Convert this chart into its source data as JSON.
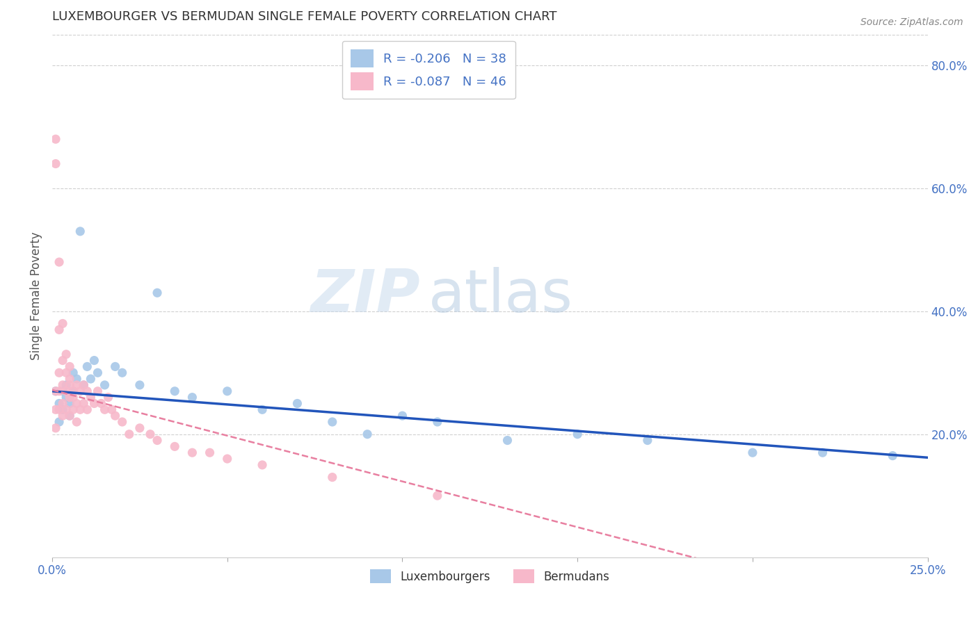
{
  "title": "LUXEMBOURGER VS BERMUDAN SINGLE FEMALE POVERTY CORRELATION CHART",
  "source": "Source: ZipAtlas.com",
  "ylabel": "Single Female Poverty",
  "legend_bottom": [
    "Luxembourgers",
    "Bermudans"
  ],
  "R_lux": -0.206,
  "N_lux": 38,
  "R_berm": -0.087,
  "N_berm": 46,
  "lux_color": "#a8c8e8",
  "berm_color": "#f7b8ca",
  "lux_line_color": "#2255bb",
  "berm_line_color": "#e87fa0",
  "xlim": [
    0.0,
    0.25
  ],
  "ylim": [
    0.0,
    0.85
  ],
  "y_ticks_right": [
    0.2,
    0.4,
    0.6,
    0.8
  ],
  "y_tick_labels_right": [
    "20.0%",
    "40.0%",
    "60.0%",
    "80.0%"
  ],
  "watermark_zip": "ZIP",
  "watermark_atlas": "atlas",
  "lux_x": [
    0.001,
    0.002,
    0.002,
    0.003,
    0.003,
    0.004,
    0.004,
    0.005,
    0.005,
    0.006,
    0.006,
    0.007,
    0.008,
    0.009,
    0.01,
    0.011,
    0.012,
    0.013,
    0.015,
    0.018,
    0.02,
    0.025,
    0.03,
    0.035,
    0.04,
    0.05,
    0.06,
    0.07,
    0.08,
    0.09,
    0.1,
    0.11,
    0.13,
    0.15,
    0.17,
    0.2,
    0.22,
    0.24
  ],
  "lux_y": [
    0.27,
    0.25,
    0.22,
    0.27,
    0.24,
    0.28,
    0.26,
    0.25,
    0.23,
    0.3,
    0.27,
    0.29,
    0.53,
    0.28,
    0.31,
    0.29,
    0.32,
    0.3,
    0.28,
    0.31,
    0.3,
    0.28,
    0.43,
    0.27,
    0.26,
    0.27,
    0.24,
    0.25,
    0.22,
    0.2,
    0.23,
    0.22,
    0.19,
    0.2,
    0.19,
    0.17,
    0.17,
    0.165
  ],
  "berm_x": [
    0.001,
    0.001,
    0.001,
    0.002,
    0.002,
    0.002,
    0.003,
    0.003,
    0.003,
    0.004,
    0.004,
    0.004,
    0.005,
    0.005,
    0.005,
    0.006,
    0.006,
    0.007,
    0.007,
    0.007,
    0.008,
    0.008,
    0.009,
    0.009,
    0.01,
    0.01,
    0.011,
    0.012,
    0.013,
    0.014,
    0.015,
    0.016,
    0.017,
    0.018,
    0.02,
    0.022,
    0.025,
    0.028,
    0.03,
    0.035,
    0.04,
    0.045,
    0.05,
    0.06,
    0.08,
    0.11
  ],
  "berm_y": [
    0.27,
    0.24,
    0.21,
    0.3,
    0.27,
    0.24,
    0.28,
    0.25,
    0.23,
    0.3,
    0.27,
    0.24,
    0.29,
    0.26,
    0.23,
    0.27,
    0.24,
    0.28,
    0.25,
    0.22,
    0.27,
    0.24,
    0.28,
    0.25,
    0.27,
    0.24,
    0.26,
    0.25,
    0.27,
    0.25,
    0.24,
    0.26,
    0.24,
    0.23,
    0.22,
    0.2,
    0.21,
    0.2,
    0.19,
    0.18,
    0.17,
    0.17,
    0.16,
    0.15,
    0.13,
    0.1
  ],
  "berm_outlier_x": [
    0.001,
    0.001,
    0.002,
    0.002,
    0.003,
    0.003,
    0.004,
    0.005,
    0.005,
    0.006
  ],
  "berm_outlier_y": [
    0.64,
    0.68,
    0.48,
    0.37,
    0.38,
    0.32,
    0.33,
    0.31,
    0.28,
    0.26
  ]
}
